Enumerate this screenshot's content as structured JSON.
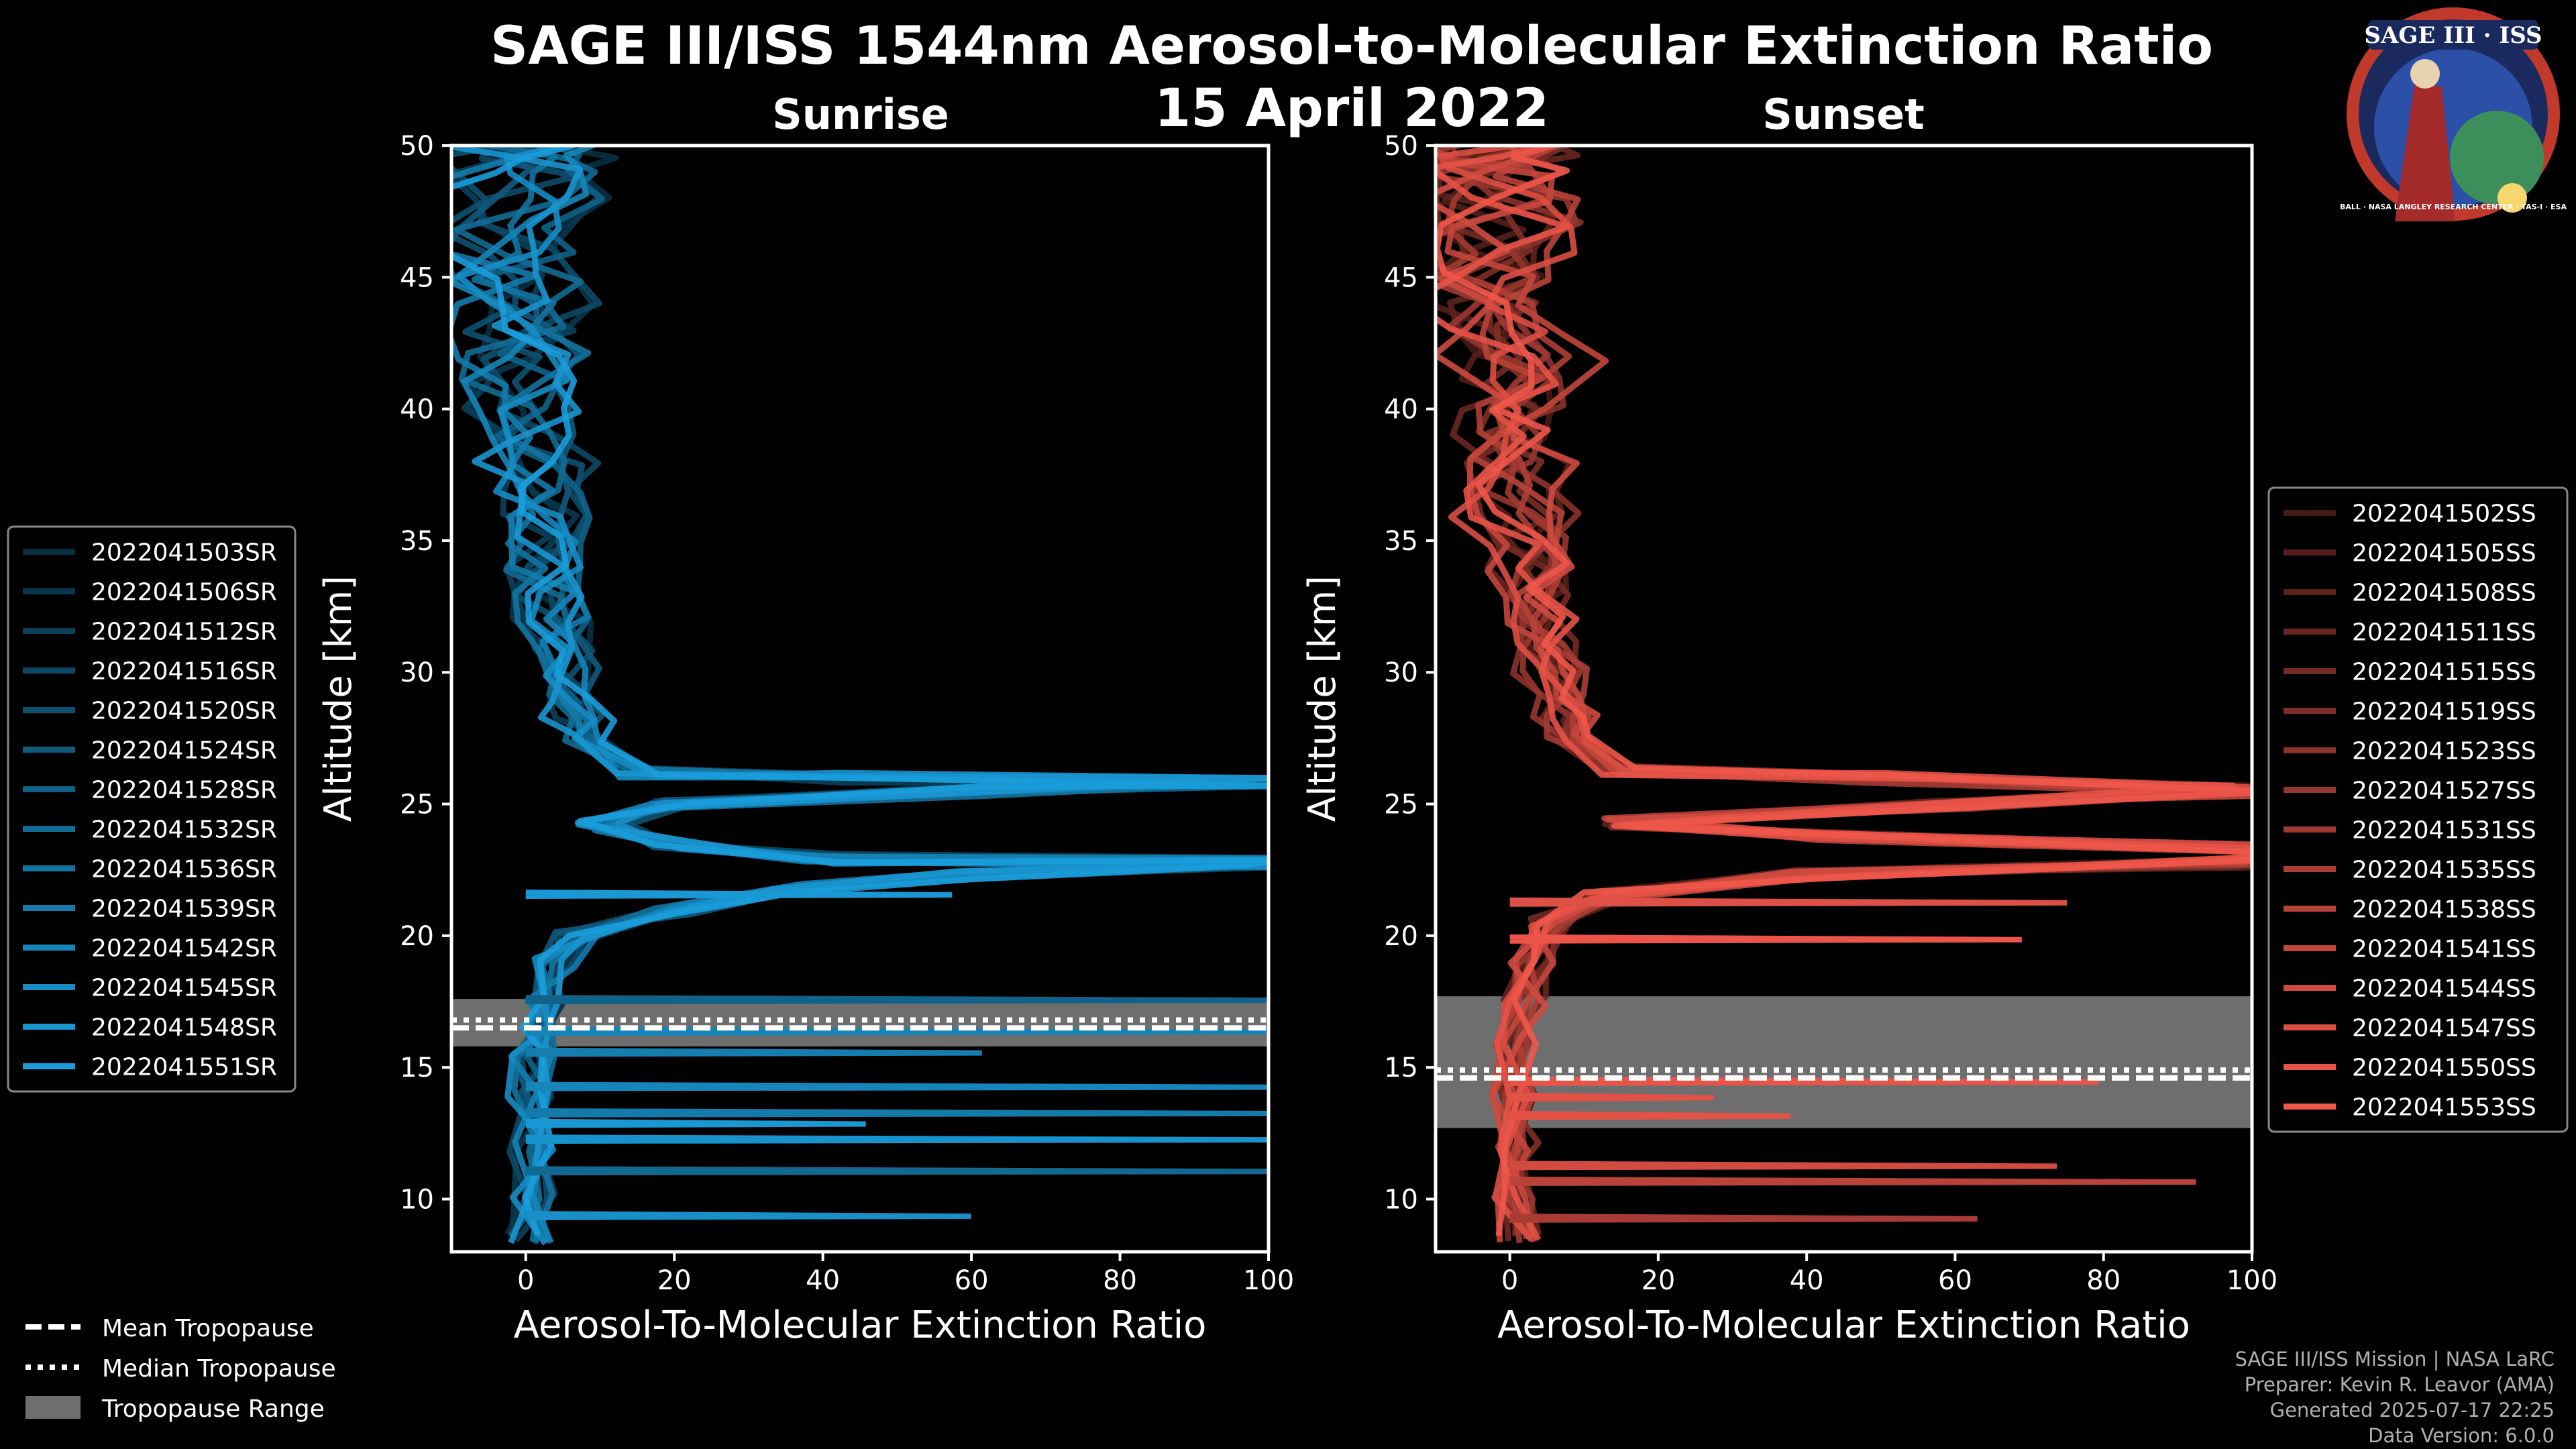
{
  "header": {
    "title": "SAGE III/ISS 1544nm Aerosol-to-Molecular Extinction Ratio",
    "date": "15 April 2022",
    "logo_text": "SAGE III · ISS",
    "logo_ring": "BALL · NASA LANGLEY RESEARCH CENTER · TAS-I · ESA"
  },
  "credits": [
    "SAGE III/ISS Mission | NASA LaRC",
    "Preparer: Kevin R. Leavor (AMA)",
    "Generated 2025-07-17 22:25",
    "Data Version: 6.0.0"
  ],
  "colors": {
    "sunrise": "#1a9ddb",
    "sunset": "#f0564a",
    "tropo_range": "#6e6e6e",
    "background": "#000000"
  },
  "tropo_legend": [
    "Mean Tropopause",
    "Median Tropopause",
    "Tropopause Range"
  ],
  "chart_data": [
    {
      "type": "line",
      "title": "Sunrise",
      "xlabel": "Aerosol-To-Molecular Extinction Ratio",
      "ylabel": "Altitude [km]",
      "xlim": [
        -10,
        100
      ],
      "ylim": [
        8,
        50
      ],
      "xticks": [
        "0",
        "20",
        "40",
        "60",
        "80",
        "100"
      ],
      "yticks": [
        "10",
        "15",
        "20",
        "25",
        "30",
        "35",
        "40",
        "45",
        "50"
      ],
      "legend_loc": "left",
      "tropopause": {
        "mean": 16.5,
        "median": 16.8,
        "range": [
          15.8,
          17.6
        ]
      },
      "profile": [
        [
          0.5,
          8.5
        ],
        [
          1,
          10
        ],
        [
          0.8,
          12
        ],
        [
          0.5,
          14
        ],
        [
          1,
          15.5
        ],
        [
          2,
          16.5
        ],
        [
          3,
          17.5
        ],
        [
          4,
          19
        ],
        [
          7,
          20
        ],
        [
          20,
          21
        ],
        [
          35,
          21.8
        ],
        [
          60,
          22.3
        ],
        [
          100,
          22.8
        ],
        [
          100,
          22.8
        ],
        [
          40,
          22.9
        ],
        [
          20,
          23.5
        ],
        [
          10,
          24.2
        ],
        [
          20,
          25
        ],
        [
          60,
          25.5
        ],
        [
          100,
          25.8
        ],
        [
          40,
          26
        ],
        [
          15,
          26.2
        ],
        [
          8,
          27.5
        ],
        [
          6,
          29
        ],
        [
          5,
          31
        ],
        [
          3,
          33
        ],
        [
          2,
          35
        ],
        [
          1,
          37
        ],
        [
          1.5,
          39
        ],
        [
          -1,
          41
        ],
        [
          -2,
          43
        ],
        [
          -1,
          45
        ],
        [
          -3,
          47
        ],
        [
          -1,
          49
        ],
        [
          0,
          50
        ]
      ],
      "series": [
        {
          "name": "2022041503SR"
        },
        {
          "name": "2022041506SR"
        },
        {
          "name": "2022041512SR"
        },
        {
          "name": "2022041516SR"
        },
        {
          "name": "2022041520SR"
        },
        {
          "name": "2022041524SR"
        },
        {
          "name": "2022041528SR"
        },
        {
          "name": "2022041532SR"
        },
        {
          "name": "2022041536SR"
        },
        {
          "name": "2022041539SR"
        },
        {
          "name": "2022041542SR"
        },
        {
          "name": "2022041545SR"
        },
        {
          "name": "2022041548SR"
        },
        {
          "name": "2022041551SR"
        }
      ]
    },
    {
      "type": "line",
      "title": "Sunset",
      "xlabel": "Aerosol-To-Molecular Extinction Ratio",
      "ylabel": "Altitude [km]",
      "xlim": [
        -10,
        100
      ],
      "ylim": [
        8,
        50
      ],
      "xticks": [
        "0",
        "20",
        "40",
        "60",
        "80",
        "100"
      ],
      "yticks": [
        "10",
        "15",
        "20",
        "25",
        "30",
        "35",
        "40",
        "45",
        "50"
      ],
      "legend_loc": "right",
      "tropopause": {
        "mean": 14.6,
        "median": 14.9,
        "range": [
          12.7,
          17.7
        ]
      },
      "profile": [
        [
          1,
          8.5
        ],
        [
          0.5,
          10
        ],
        [
          1,
          12
        ],
        [
          0.5,
          14
        ],
        [
          1,
          16
        ],
        [
          2,
          17.5
        ],
        [
          3,
          19
        ],
        [
          5,
          20.5
        ],
        [
          12,
          21.5
        ],
        [
          40,
          22.3
        ],
        [
          100,
          22.8
        ],
        [
          100,
          23.3
        ],
        [
          40,
          23.8
        ],
        [
          15,
          24.3
        ],
        [
          60,
          25
        ],
        [
          100,
          25.5
        ],
        [
          50,
          26
        ],
        [
          15,
          26.3
        ],
        [
          8,
          27.5
        ],
        [
          7,
          29
        ],
        [
          5,
          31
        ],
        [
          3,
          33
        ],
        [
          2,
          35
        ],
        [
          0,
          37
        ],
        [
          -1,
          39
        ],
        [
          1,
          41
        ],
        [
          0,
          43
        ],
        [
          -2,
          45
        ],
        [
          0,
          47
        ],
        [
          -1,
          49
        ],
        [
          0,
          50
        ]
      ],
      "series": [
        {
          "name": "2022041502SS"
        },
        {
          "name": "2022041505SS"
        },
        {
          "name": "2022041508SS"
        },
        {
          "name": "2022041511SS"
        },
        {
          "name": "2022041515SS"
        },
        {
          "name": "2022041519SS"
        },
        {
          "name": "2022041523SS"
        },
        {
          "name": "2022041527SS"
        },
        {
          "name": "2022041531SS"
        },
        {
          "name": "2022041535SS"
        },
        {
          "name": "2022041538SS"
        },
        {
          "name": "2022041541SS"
        },
        {
          "name": "2022041544SS"
        },
        {
          "name": "2022041547SS"
        },
        {
          "name": "2022041550SS"
        },
        {
          "name": "2022041553SS"
        }
      ]
    }
  ]
}
